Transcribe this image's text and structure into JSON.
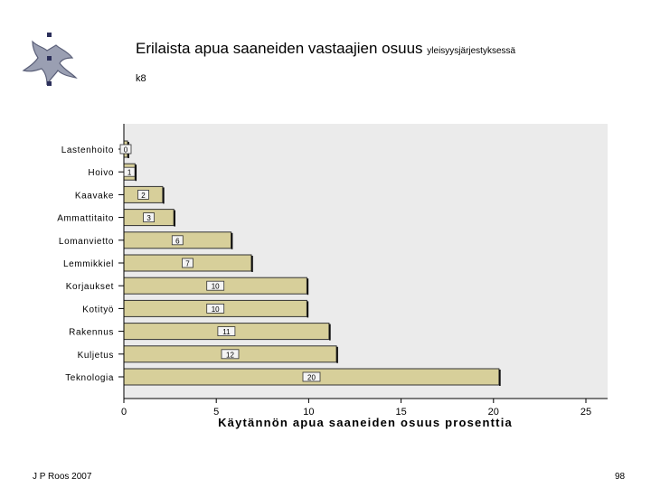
{
  "slide": {
    "title_main": "Erilaista apua saaneiden vastaajien osuus",
    "title_small": "yleisyysjärjestyksessä",
    "subtitle": "k8",
    "footer_left": "J P Roos 2007",
    "page_number": "98"
  },
  "chart_data": {
    "type": "bar",
    "orientation": "horizontal",
    "title": "",
    "xlabel": "Käytännön apua saaneiden osuus prosenttia",
    "ylabel": "",
    "xlim": [
      0,
      25
    ],
    "xticks": [
      0,
      5,
      10,
      15,
      20,
      25
    ],
    "categories": [
      "Lastenhoito",
      "Hoivo",
      "Kaavake",
      "Ammattitaito",
      "Lomanvietto",
      "Lemmikkiel",
      "Korjaukset",
      "Kotityö",
      "Rakennus",
      "Kuljetus",
      "Teknologia"
    ],
    "values": [
      0.2,
      0.6,
      2.1,
      2.7,
      5.8,
      6.9,
      9.9,
      9.9,
      11.1,
      11.5,
      20.3
    ],
    "data_labels": [
      "0",
      "1",
      "2",
      "3",
      "6",
      "7",
      "10",
      "10",
      "11",
      "12",
      "20"
    ],
    "grid": false,
    "colors": {
      "bar": "#d7cf9a",
      "plot_background": "#ebebeb",
      "bar_stroke": "#333333"
    }
  }
}
